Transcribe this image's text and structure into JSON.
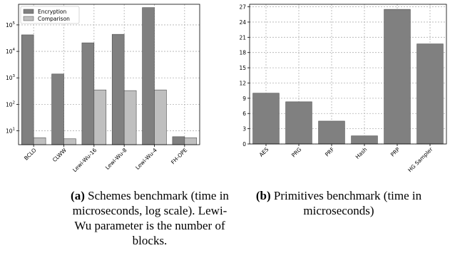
{
  "chart_data": [
    {
      "type": "bar",
      "yscale": "log",
      "categories": [
        "BCLO",
        "CLWW",
        "Lewi-Wu-16",
        "Lewi-Wu-8",
        "Lewi-Wu-4",
        "FH-OPE"
      ],
      "series": [
        {
          "name": "Encryption",
          "values": [
            42000,
            1400,
            21000,
            44000,
            450000,
            6
          ],
          "color": "#808080"
        },
        {
          "name": "Comparison",
          "values": [
            5.5,
            5,
            350,
            330,
            350,
            5.5
          ],
          "color": "#bfbfbf"
        }
      ],
      "ylim": [
        3,
        600000
      ],
      "yticks": [
        {
          "value": 10,
          "base": "10",
          "exp": "1"
        },
        {
          "value": 100,
          "base": "10",
          "exp": "2"
        },
        {
          "value": 1000,
          "base": "10",
          "exp": "3"
        },
        {
          "value": 10000,
          "base": "10",
          "exp": "4"
        },
        {
          "value": 100000,
          "base": "10",
          "exp": "5"
        }
      ],
      "grid": true,
      "legend": "top-left",
      "caption": {
        "label": "(a)",
        "text": "Schemes benchmark (time in microseconds, log scale). Lewi-Wu parameter is the number of blocks."
      }
    },
    {
      "type": "bar",
      "yscale": "linear",
      "categories": [
        "AES",
        "PRG",
        "PRF",
        "Hash",
        "PRP",
        "HG Sampler"
      ],
      "series": [
        {
          "values": [
            10,
            8.3,
            4.5,
            1.6,
            26.5,
            19.7
          ],
          "color": "#808080"
        }
      ],
      "ylim": [
        0,
        27.5
      ],
      "yticks": [
        0,
        3,
        6,
        9,
        12,
        15,
        18,
        21,
        24,
        27
      ],
      "grid": true,
      "caption": {
        "label": "(b)",
        "text": "Primitives benchmark (time in microseconds)"
      }
    }
  ]
}
